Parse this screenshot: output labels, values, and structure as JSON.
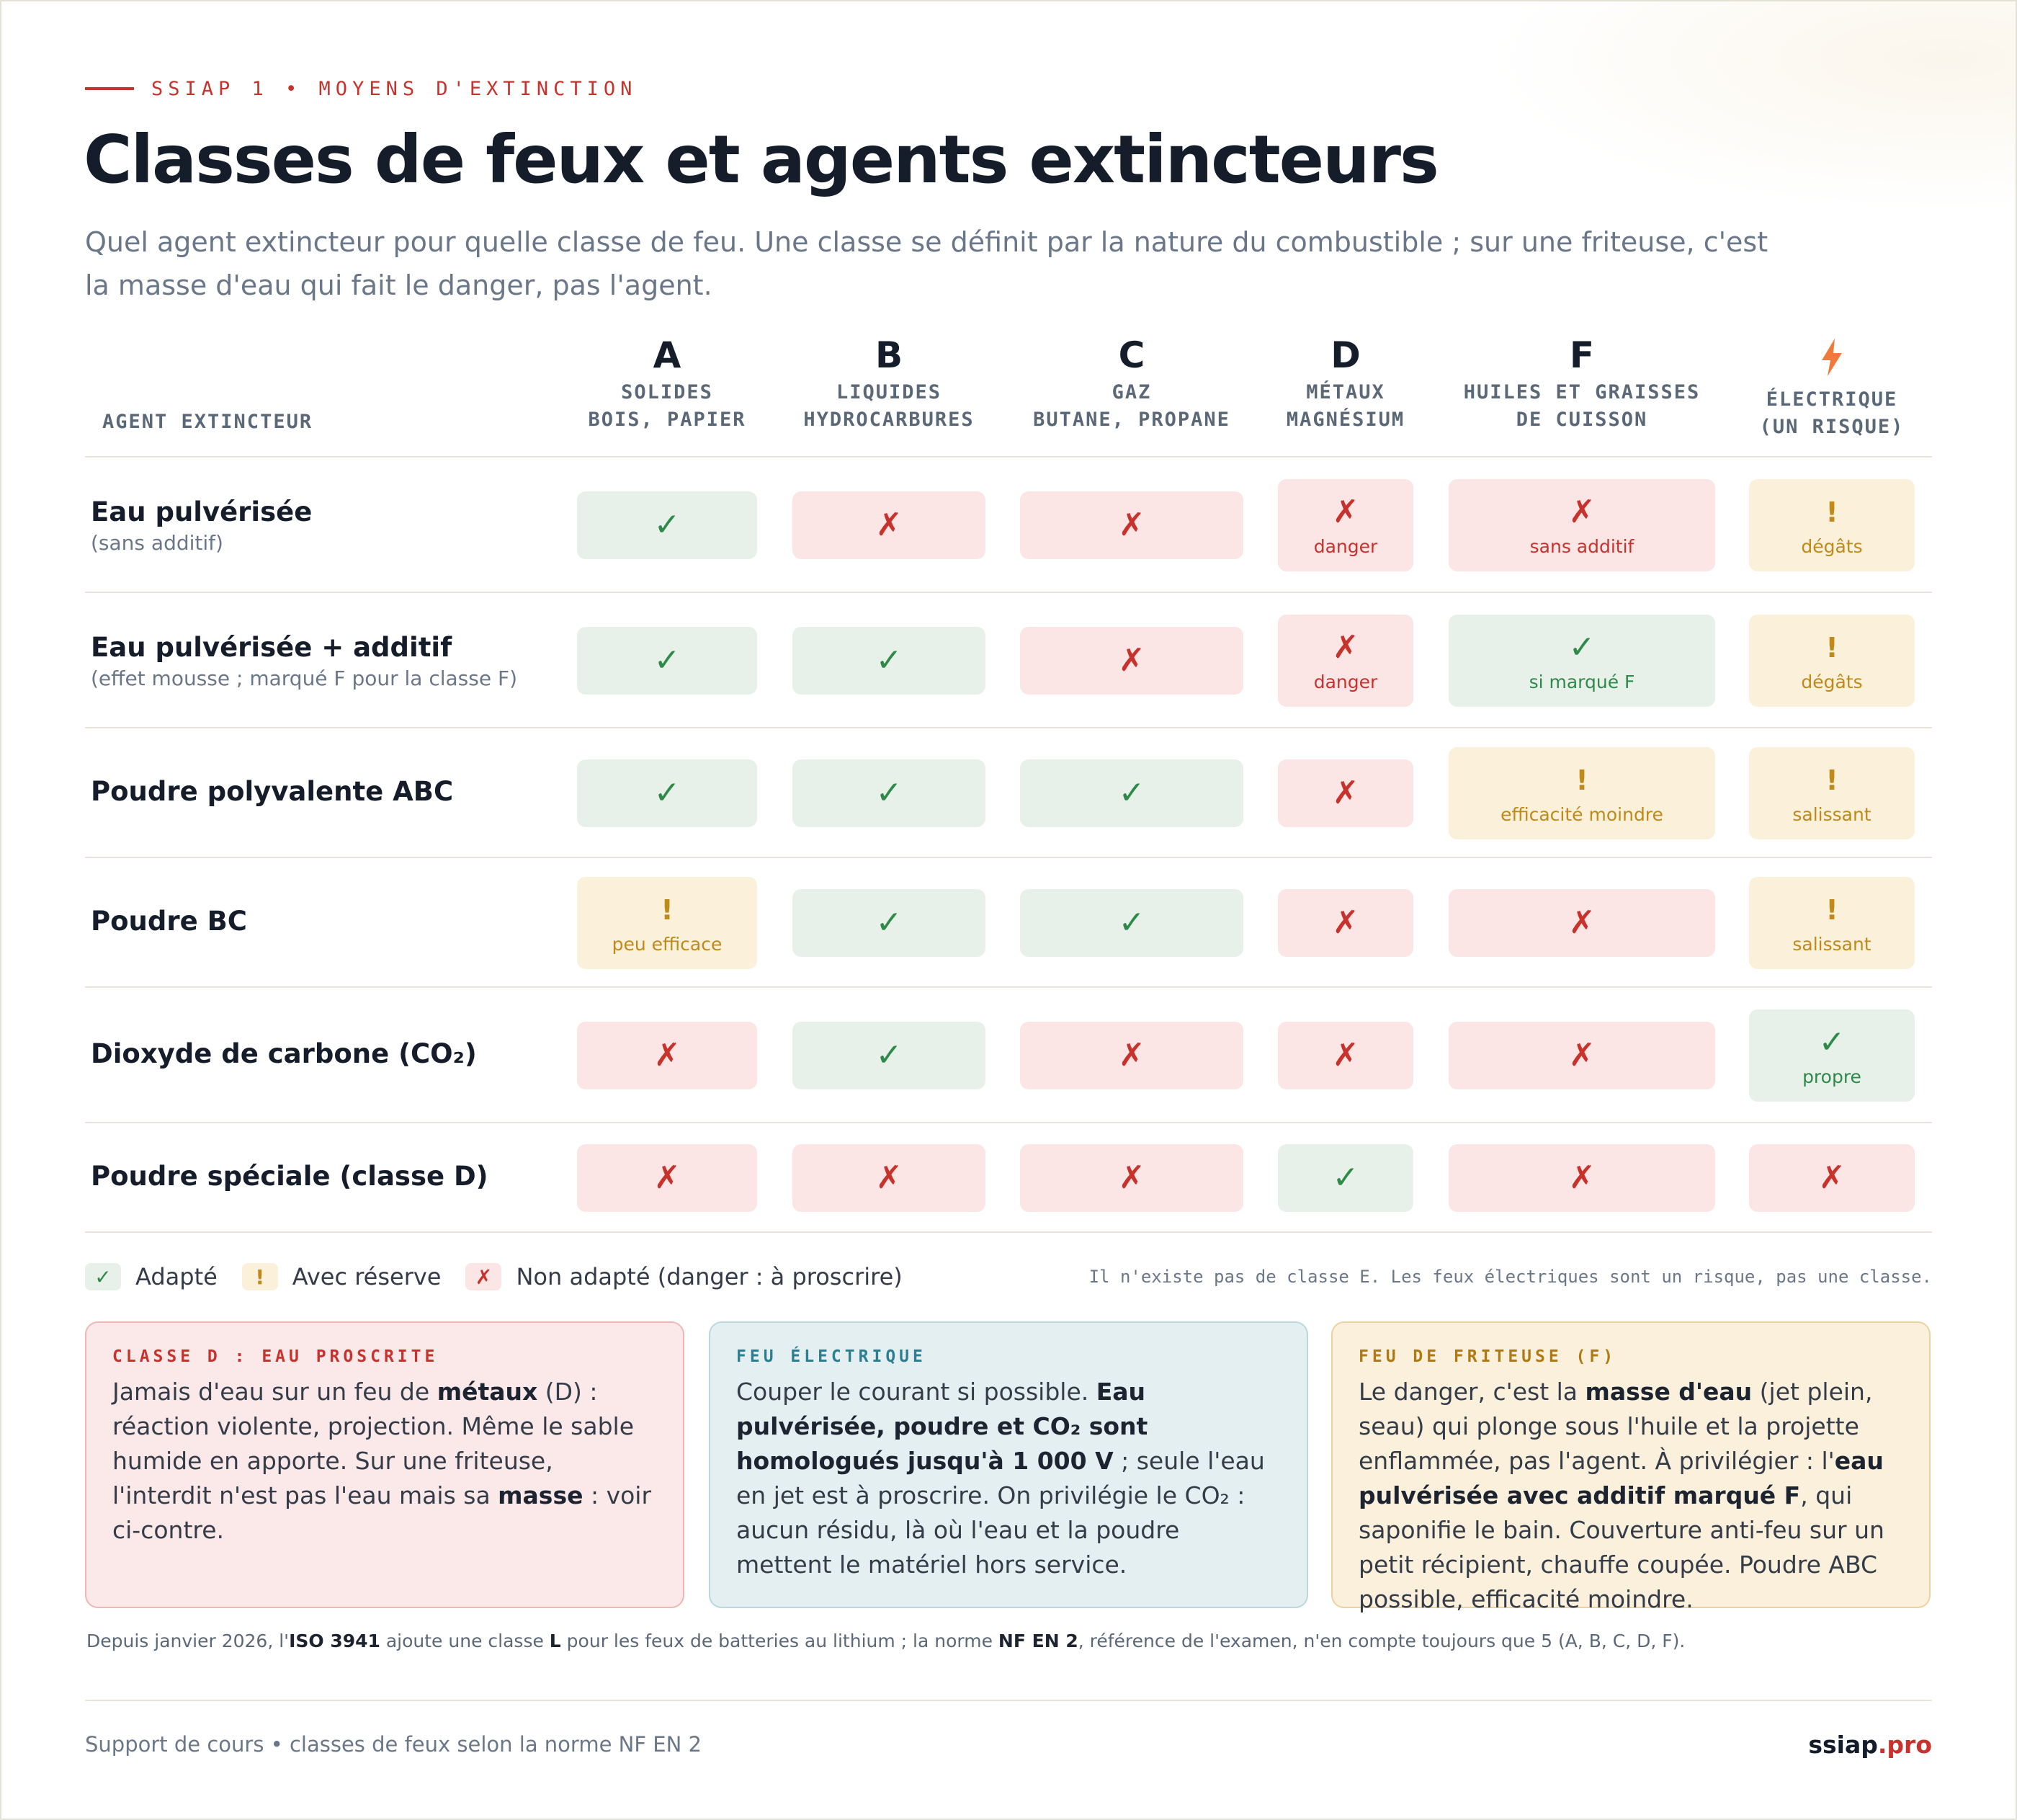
{
  "header": {
    "kicker": "SSIAP 1 • MOYENS D'EXTINCTION",
    "title": "Classes de feux et agents extincteurs",
    "subtitle": "Quel agent extincteur pour quelle classe de feu. Une classe se définit par la nature du combustible ; sur une friteuse, c'est la masse d'eau qui fait le danger, pas l'agent."
  },
  "table": {
    "agent_header": "AGENT EXTINCTEUR",
    "columns": [
      {
        "letter": "A",
        "line1": "SOLIDES",
        "line2": "BOIS, PAPIER",
        "icon": ""
      },
      {
        "letter": "B",
        "line1": "LIQUIDES",
        "line2": "HYDROCARBURES",
        "icon": ""
      },
      {
        "letter": "C",
        "line1": "GAZ",
        "line2": "BUTANE, PROPANE",
        "icon": ""
      },
      {
        "letter": "D",
        "line1": "MÉTAUX",
        "line2": "MAGNÉSIUM",
        "icon": ""
      },
      {
        "letter": "F",
        "line1": "HUILES ET GRAISSES",
        "line2": "DE CUISSON",
        "icon": ""
      },
      {
        "letter": "",
        "line1": "ÉLECTRIQUE",
        "line2": "(UN RISQUE)",
        "icon": "lightning-icon"
      }
    ],
    "rows": [
      {
        "name": "Eau pulvérisée",
        "note": "(sans additif)",
        "cells": [
          {
            "status": "ok",
            "label": ""
          },
          {
            "status": "no",
            "label": ""
          },
          {
            "status": "no",
            "label": ""
          },
          {
            "status": "no",
            "label": "danger"
          },
          {
            "status": "no",
            "label": "sans additif"
          },
          {
            "status": "warn",
            "label": "dégâts"
          }
        ]
      },
      {
        "name": "Eau pulvérisée + additif",
        "note": "(effet mousse ; marqué F pour la classe F)",
        "cells": [
          {
            "status": "ok",
            "label": ""
          },
          {
            "status": "ok",
            "label": ""
          },
          {
            "status": "no",
            "label": ""
          },
          {
            "status": "no",
            "label": "danger"
          },
          {
            "status": "ok",
            "label": "si marqué F"
          },
          {
            "status": "warn",
            "label": "dégâts"
          }
        ]
      },
      {
        "name": "Poudre polyvalente ABC",
        "note": "",
        "cells": [
          {
            "status": "ok",
            "label": ""
          },
          {
            "status": "ok",
            "label": ""
          },
          {
            "status": "ok",
            "label": ""
          },
          {
            "status": "no",
            "label": ""
          },
          {
            "status": "warn",
            "label": "efficacité moindre"
          },
          {
            "status": "warn",
            "label": "salissant"
          }
        ]
      },
      {
        "name": "Poudre BC",
        "note": "",
        "cells": [
          {
            "status": "warn",
            "label": "peu efficace"
          },
          {
            "status": "ok",
            "label": ""
          },
          {
            "status": "ok",
            "label": ""
          },
          {
            "status": "no",
            "label": ""
          },
          {
            "status": "no",
            "label": ""
          },
          {
            "status": "warn",
            "label": "salissant"
          }
        ]
      },
      {
        "name": "Dioxyde de carbone (CO₂)",
        "note": "",
        "cells": [
          {
            "status": "no",
            "label": ""
          },
          {
            "status": "ok",
            "label": ""
          },
          {
            "status": "no",
            "label": ""
          },
          {
            "status": "no",
            "label": ""
          },
          {
            "status": "no",
            "label": ""
          },
          {
            "status": "ok",
            "label": "propre"
          }
        ]
      },
      {
        "name": "Poudre spéciale (classe D)",
        "note": "",
        "cells": [
          {
            "status": "no",
            "label": ""
          },
          {
            "status": "no",
            "label": ""
          },
          {
            "status": "no",
            "label": ""
          },
          {
            "status": "ok",
            "label": ""
          },
          {
            "status": "no",
            "label": ""
          },
          {
            "status": "no",
            "label": ""
          }
        ]
      }
    ],
    "symbols": {
      "ok": "✓",
      "warn": "!",
      "no": "✗"
    }
  },
  "legend": {
    "ok_symbol": "✓",
    "ok_label": "Adapté",
    "warn_symbol": "!",
    "warn_label": "Avec réserve",
    "no_symbol": "✗",
    "no_label": "Non adapté (danger : à proscrire)",
    "note": "Il n'existe pas de classe E. Les feux électriques sont un risque, pas une classe."
  },
  "boxes": {
    "red": {
      "title": "CLASSE D : EAU PROSCRITE"
    },
    "blue": {
      "title": "FEU ÉLECTRIQUE"
    },
    "yellow": {
      "title": "FEU DE FRITEUSE (F)"
    }
  },
  "footer": {
    "left": "Support de cours • classes de feux selon la norme NF EN 2",
    "brand": "ssiap",
    "brand_tld": ".pro"
  },
  "colors": {
    "accent": "#c8322d",
    "ok_bg": "#e7f1ea",
    "ok_fg": "#2f8a4a",
    "no_bg": "#fbe5e5",
    "no_fg": "#c8322d",
    "warn_bg": "#fbf0d9",
    "warn_fg": "#c08a1a",
    "lightning": "#f07a3a"
  }
}
